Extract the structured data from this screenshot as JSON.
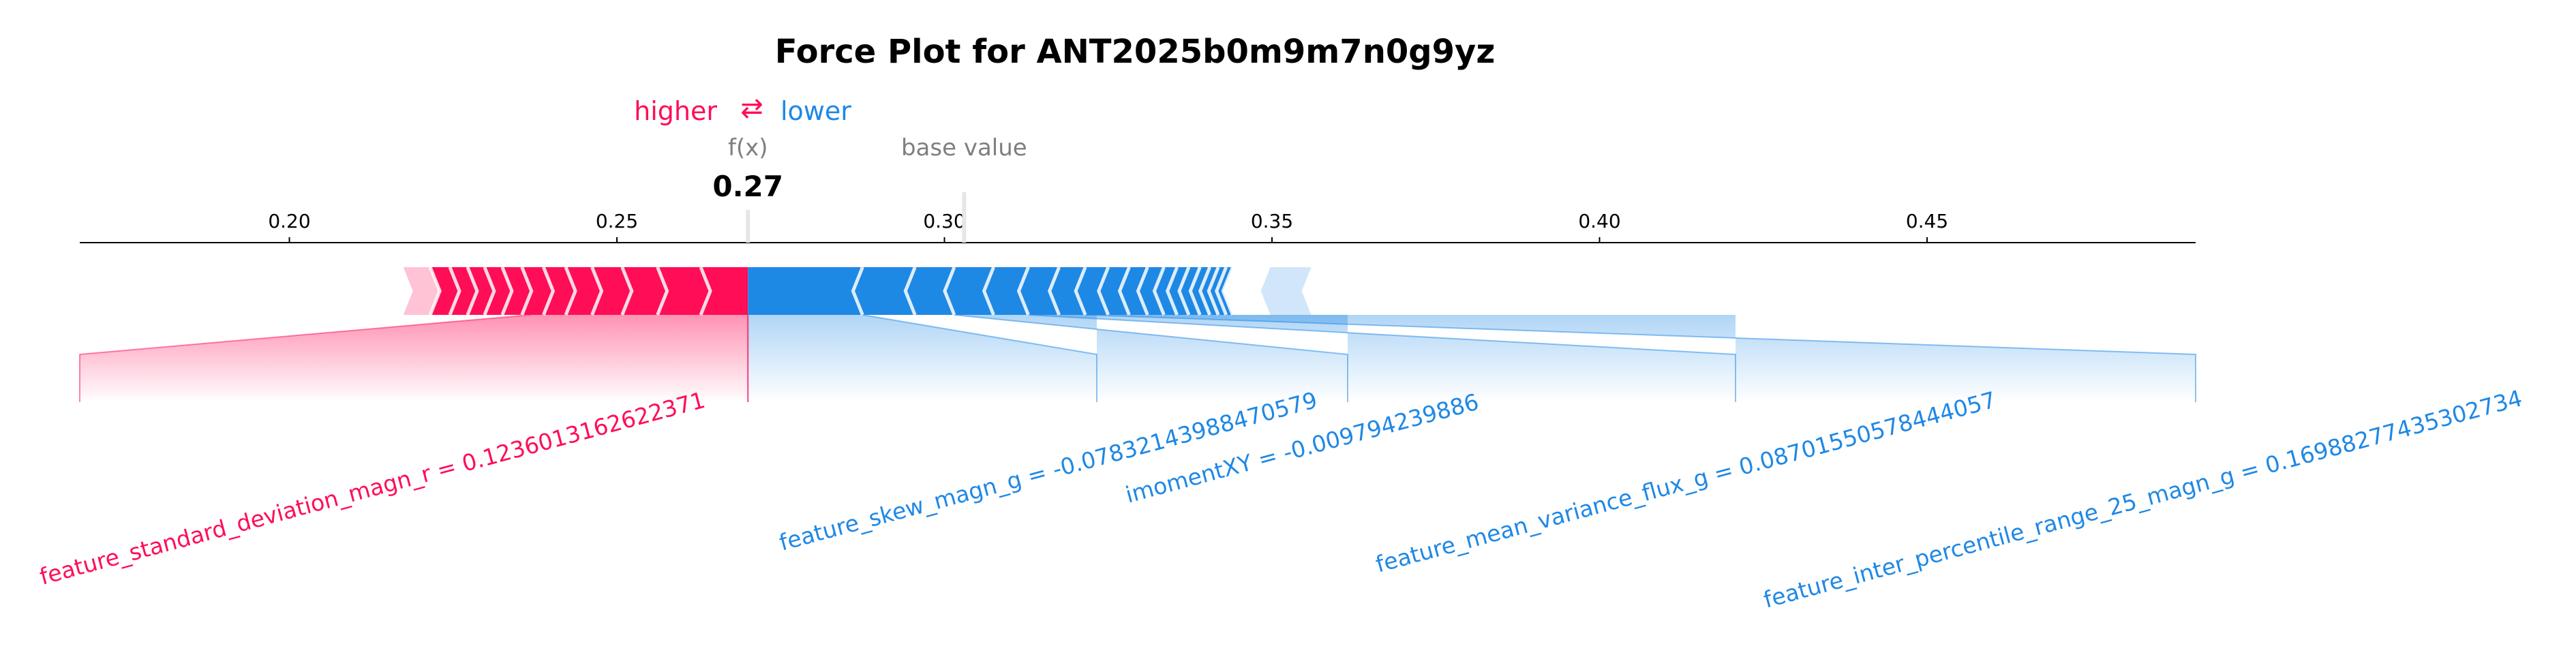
{
  "chart_data": {
    "type": "force",
    "title": "Force Plot for ANT2025b0m9m7n0g9yz",
    "legend": {
      "higher": "higher",
      "lower": "lower",
      "arrow_glyph": "⇄"
    },
    "fx_label": "f(x)",
    "fx_value": 0.27,
    "fx_value_text": "0.27",
    "base_value_label": "base value",
    "base_value": 0.303,
    "xlim": [
      0.168,
      0.491
    ],
    "ticks": [
      0.2,
      0.25,
      0.3,
      0.35,
      0.4,
      0.45
    ],
    "tick_labels": [
      "0.20",
      "0.25",
      "0.30",
      "0.35",
      "0.40",
      "0.45"
    ],
    "colors": {
      "positive": "#ff0d57",
      "negative": "#1e88e5",
      "positive_light": "#ffc3d5",
      "negative_light": "#d1e6fa",
      "muted": "#7f7f7f",
      "axis": "#000000"
    },
    "positive_region": {
      "start": 0.2174,
      "end": 0.27
    },
    "negative_region": {
      "start": 0.27,
      "end": 0.356
    },
    "positive_dividers": [
      0.2215,
      0.2245,
      0.2272,
      0.2298,
      0.2325,
      0.2355,
      0.2388,
      0.2422,
      0.2462,
      0.2508,
      0.2562,
      0.2628
    ],
    "negative_dividers": [
      0.2875,
      0.2955,
      0.3015,
      0.3075,
      0.3128,
      0.3175,
      0.3215,
      0.325,
      0.3282,
      0.331,
      0.3335,
      0.3355,
      0.3373,
      0.339,
      0.3405,
      0.3418,
      0.343,
      0.344
    ],
    "labeled_features": [
      {
        "label": "feature_standard_deviation_magn_r = 0.1236013162622371",
        "sign": "positive",
        "contribution_start": 0.2368,
        "contribution_end": 0.27
      },
      {
        "label": "feature_skew_magn_g = -0.07832143988470579",
        "sign": "negative",
        "contribution_start": 0.27,
        "contribution_end": 0.2875
      },
      {
        "label": "imomentXY = -0.009794239886",
        "sign": "negative",
        "contribution_start": 0.2875,
        "contribution_end": 0.3015
      },
      {
        "label": "feature_mean_variance_flux_g = 0.08701550578444057",
        "sign": "negative",
        "contribution_start": 0.3015,
        "contribution_end": 0.3128
      },
      {
        "label": "feature_inter_percentile_range_25_magn_g = 0.16988277435302734",
        "sign": "negative",
        "contribution_start": 0.3128,
        "contribution_end": 0.3215
      }
    ]
  }
}
